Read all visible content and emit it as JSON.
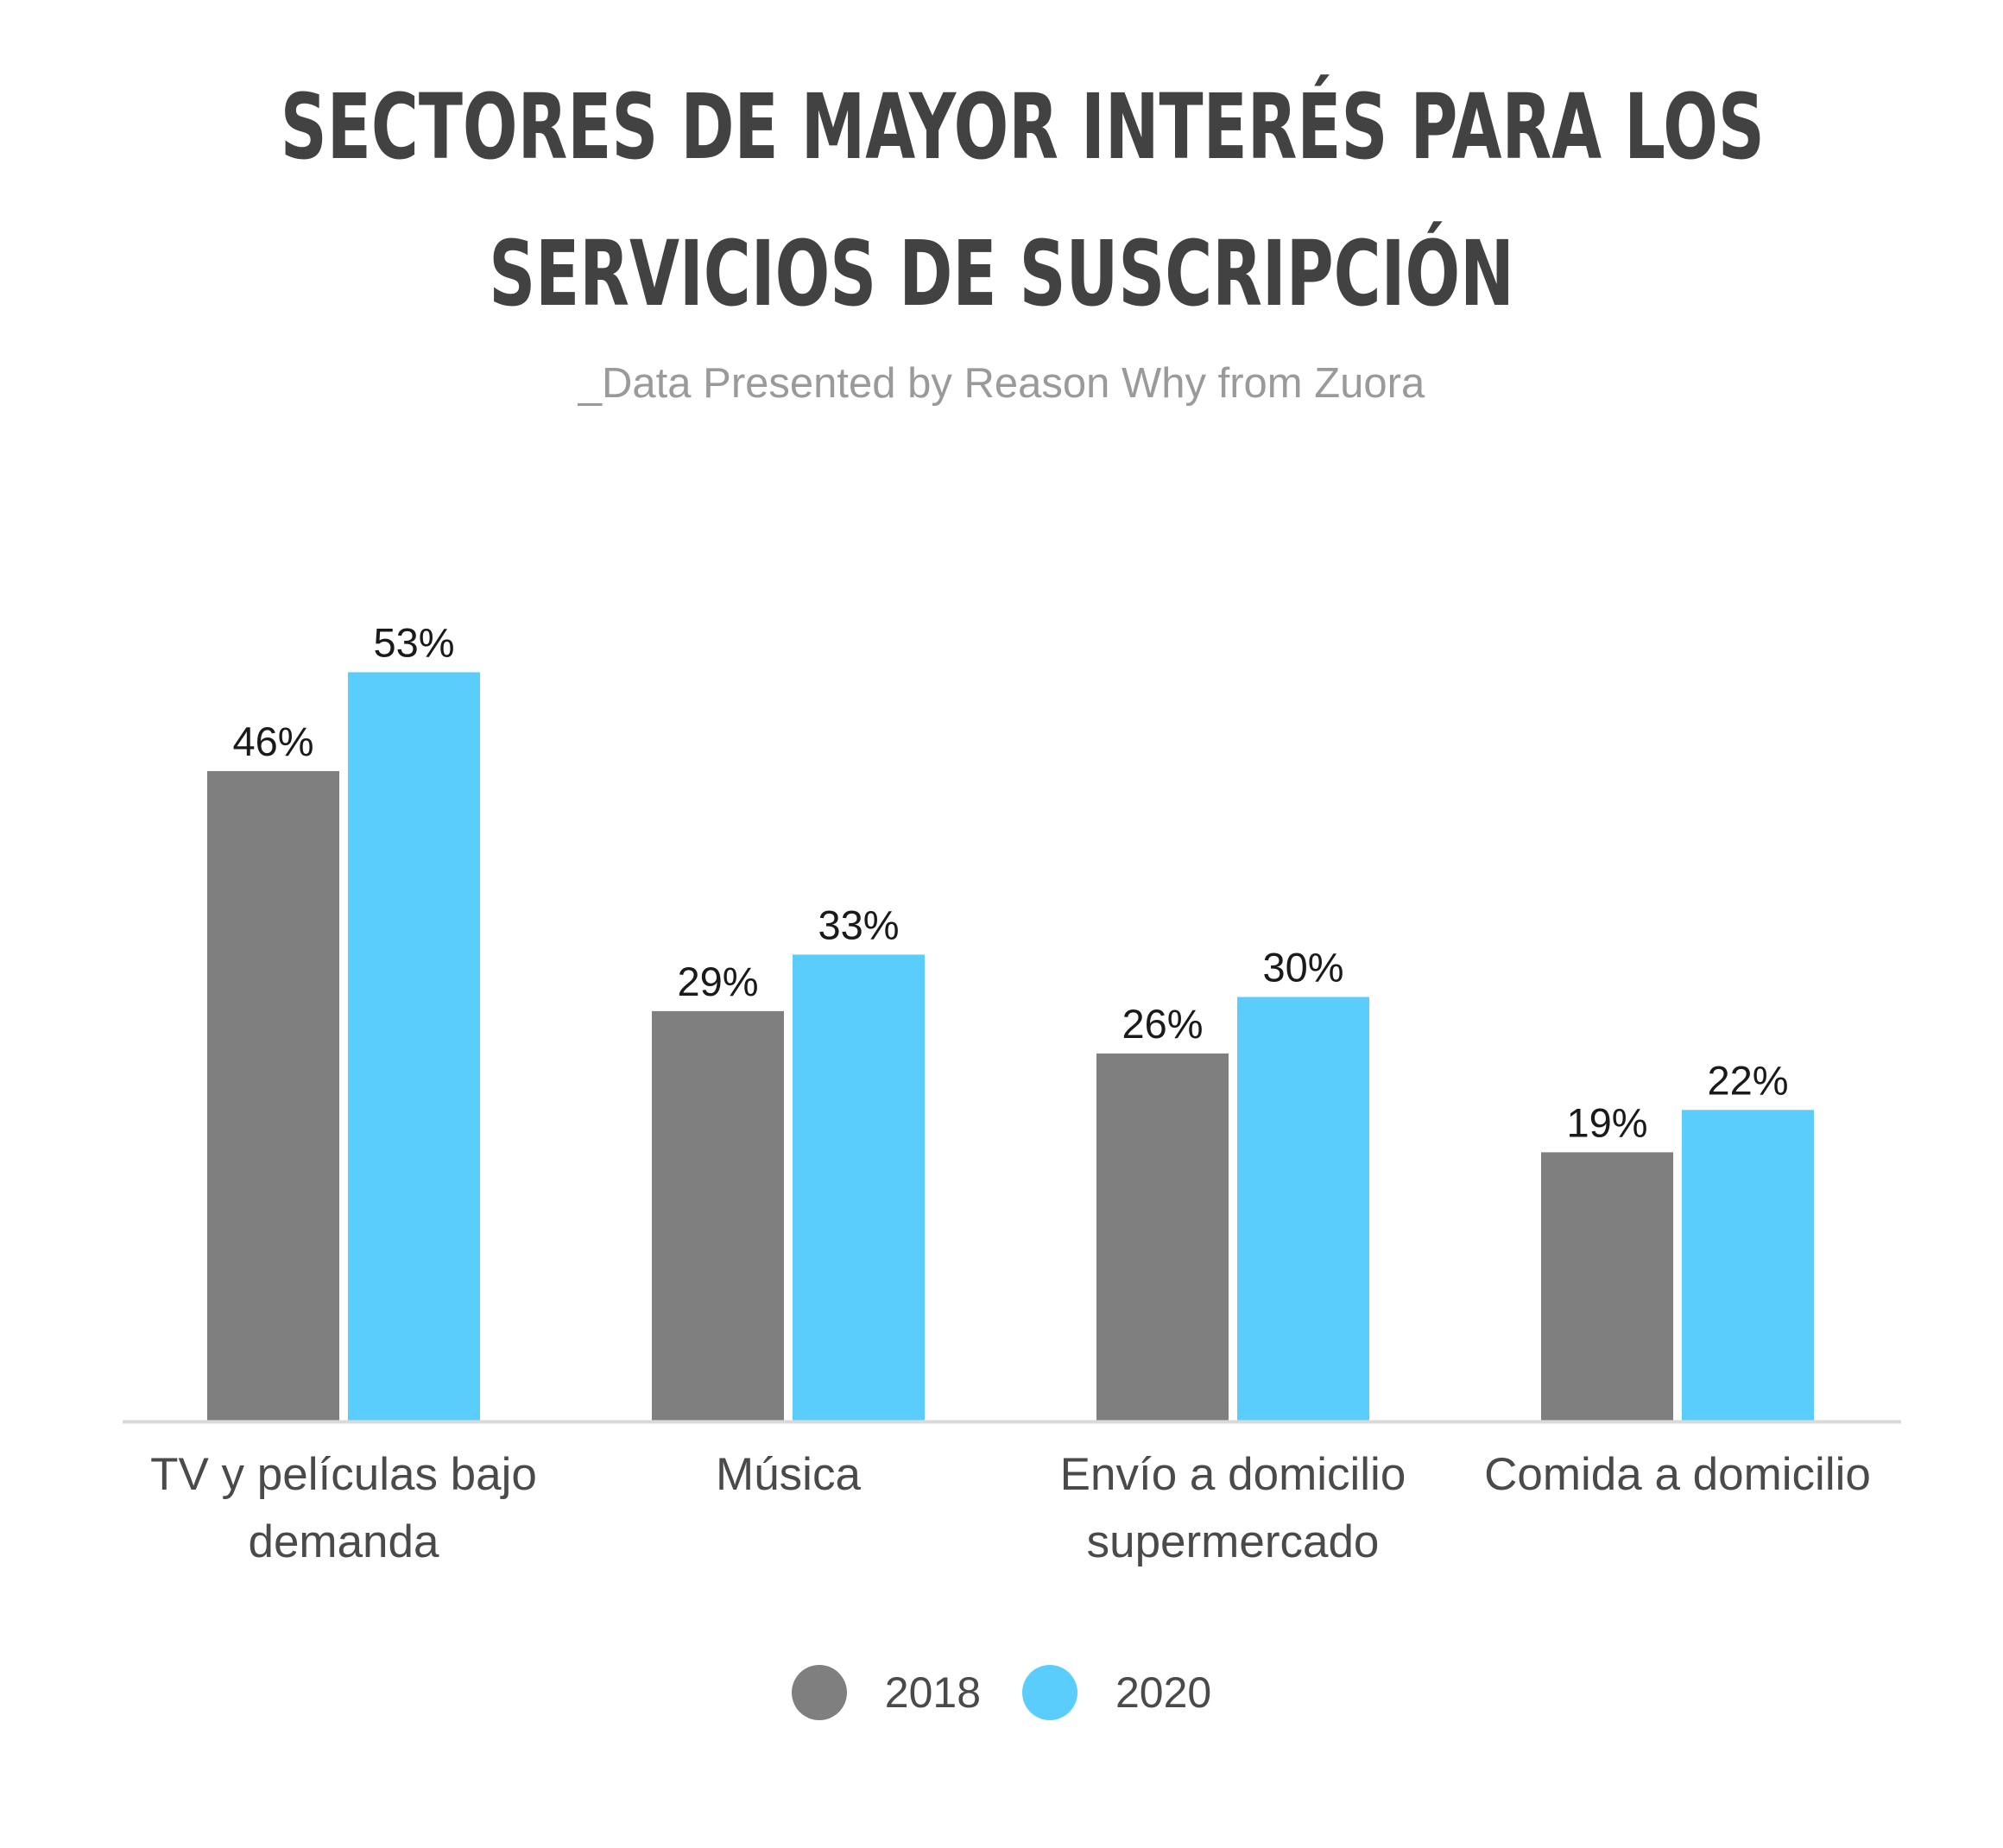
{
  "title_lines": [
    "SECTORES DE MAYOR INTERÉS PARA LOS",
    "SERVICIOS DE SUSCRIPCIÓN"
  ],
  "subtitle": "_Data Presented by Reason Why from Zuora",
  "colors": {
    "2018": "#7f7f7f",
    "2020": "#5bcdfc",
    "axis": "#d9d9d9",
    "category_text": "#4a4a4a",
    "value_text": "#1a1a1a"
  },
  "chart_data": {
    "type": "bar",
    "title": "SECTORES DE MAYOR INTERÉS PARA LOS SERVICIOS DE SUSCRIPCIÓN",
    "subtitle": "_Data Presented by Reason Why from Zuora",
    "categories": [
      [
        "TV y películas bajo",
        "demanda"
      ],
      [
        "Música"
      ],
      [
        "Envío a domicilio",
        "supermercado"
      ],
      [
        "Comida a domicilio"
      ]
    ],
    "series": [
      {
        "name": "2018",
        "values": [
          46,
          29,
          26,
          19
        ],
        "labels": [
          "46%",
          "29%",
          "26%",
          "19%"
        ]
      },
      {
        "name": "2020",
        "values": [
          53,
          33,
          30,
          22
        ],
        "labels": [
          "53%",
          "33%",
          "30%",
          "22%"
        ]
      }
    ],
    "ylim": [
      0,
      53
    ],
    "grid": false,
    "legend": "bottom-center",
    "xlabel": "",
    "ylabel": ""
  }
}
